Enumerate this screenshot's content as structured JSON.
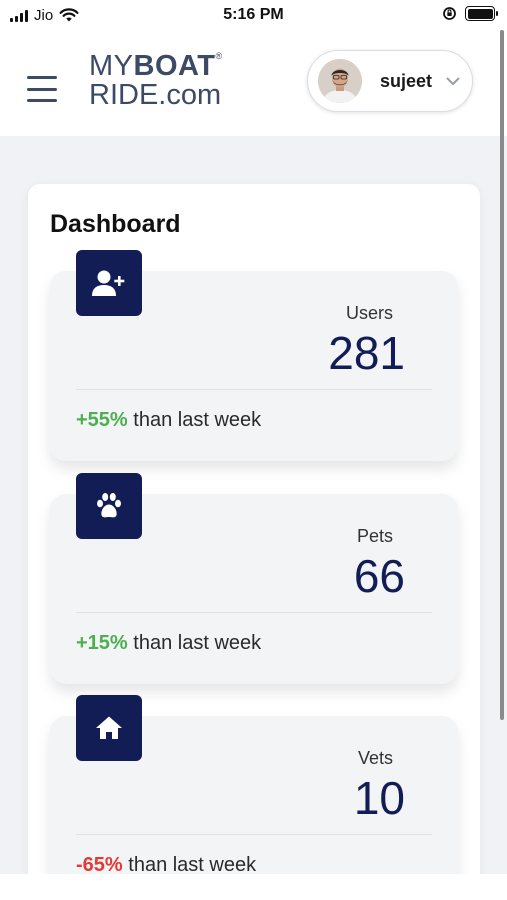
{
  "status_bar": {
    "carrier": "Jio",
    "time": "5:16 PM"
  },
  "header": {
    "logo_my": "MY",
    "logo_boat": "BOAT",
    "logo_registered": "®",
    "logo_line2": "RIDE.com",
    "username": "sujeet",
    "menu_icon": "hamburger-menu-icon",
    "dropdown_icon": "chevron-down-icon"
  },
  "dashboard": {
    "title": "Dashboard",
    "stats": [
      {
        "label": "Users",
        "value": "281",
        "change": "+55%",
        "change_text": " than last week",
        "trend": "up",
        "icon": "add-user-icon"
      },
      {
        "label": "Pets",
        "value": "66",
        "change": "+15%",
        "change_text": " than last week",
        "trend": "up",
        "icon": "paw-icon"
      },
      {
        "label": "Vets",
        "value": "10",
        "change": "-65%",
        "change_text": " than last week",
        "trend": "down",
        "icon": "home-icon"
      }
    ]
  },
  "colors": {
    "accent_navy": "#121c55",
    "positive": "#4caf50",
    "negative": "#e53935",
    "logo": "#3c4a66"
  }
}
